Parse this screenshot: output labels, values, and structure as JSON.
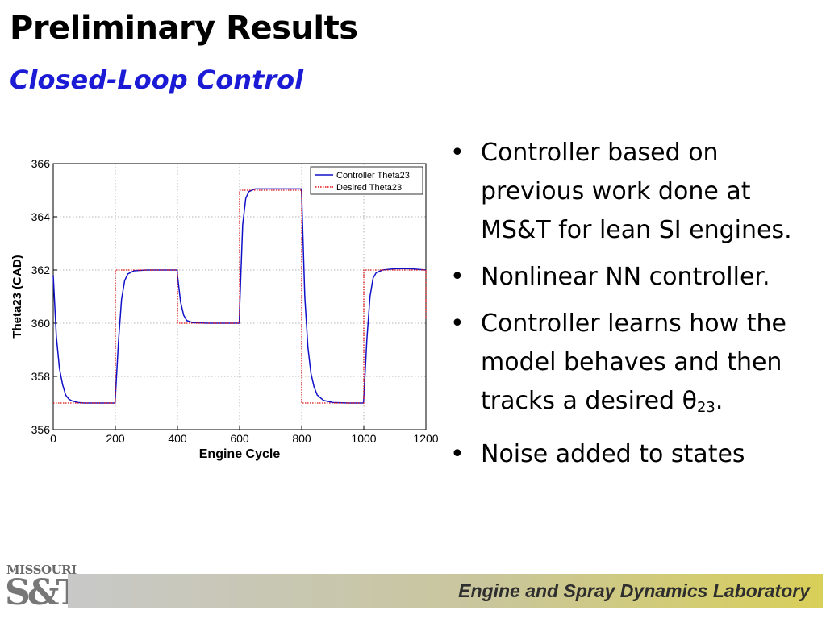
{
  "slide": {
    "title": "Preliminary Results",
    "subtitle": "Closed-Loop Control"
  },
  "bullets": [
    "Controller based on previous work done at MS&T for lean SI engines.",
    "Nonlinear NN controller.",
    "Controller learns how the model behaves and then tracks a desired",
    "Noise added to states"
  ],
  "bullet3_symbol": "θ",
  "bullet3_subscript": "23",
  "bullet3_end": ".",
  "footer": {
    "lab_name": "Engine and Spray Dynamics Laboratory",
    "logo_top": "MISSOURI",
    "logo_main": "S&T"
  },
  "colors": {
    "title": "#000000",
    "subtitle": "#1b1bd6",
    "controller_line": "#1010c8",
    "desired_line": "#e01010"
  },
  "chart_data": {
    "type": "line",
    "title": "",
    "xlabel": "Engine Cycle",
    "ylabel": "Theta23 (CAD)",
    "xlim": [
      0,
      1200
    ],
    "ylim": [
      356,
      366
    ],
    "xticks": [
      0,
      200,
      400,
      600,
      800,
      1000,
      1200
    ],
    "yticks": [
      356,
      358,
      360,
      362,
      364,
      366
    ],
    "grid": true,
    "legend_position": "top-right",
    "series": [
      {
        "name": "Controller Theta23",
        "style": "solid",
        "color": "#1010c8",
        "x": [
          0,
          10,
          20,
          30,
          40,
          50,
          60,
          80,
          100,
          150,
          199,
          200,
          210,
          220,
          230,
          240,
          260,
          300,
          350,
          399,
          400,
          410,
          420,
          430,
          450,
          500,
          550,
          599,
          600,
          610,
          620,
          630,
          650,
          700,
          750,
          799,
          800,
          810,
          820,
          830,
          840,
          850,
          870,
          900,
          950,
          999,
          1000,
          1010,
          1020,
          1030,
          1040,
          1060,
          1100,
          1150,
          1200
        ],
        "y": [
          361.8,
          359.5,
          358.3,
          357.7,
          357.3,
          357.15,
          357.08,
          357.02,
          357.0,
          357.0,
          357.0,
          357.2,
          359.3,
          360.9,
          361.6,
          361.85,
          361.97,
          362.0,
          362.0,
          362.0,
          361.8,
          360.8,
          360.3,
          360.1,
          360.02,
          360.0,
          360.0,
          360.0,
          360.5,
          363.7,
          364.7,
          364.95,
          365.05,
          365.05,
          365.05,
          365.05,
          364.8,
          361.0,
          359.1,
          358.1,
          357.6,
          357.3,
          357.1,
          357.02,
          357.0,
          357.0,
          357.2,
          359.4,
          361.0,
          361.7,
          361.9,
          362.0,
          362.05,
          362.05,
          362.0
        ]
      },
      {
        "name": "Desired Theta23",
        "style": "dotted",
        "color": "#e01010",
        "x": [
          0,
          200,
          200,
          400,
          400,
          600,
          600,
          800,
          800,
          1000,
          1000,
          1200,
          1200
        ],
        "y": [
          357,
          357,
          362,
          362,
          360,
          360,
          365,
          365,
          357,
          357,
          362,
          362,
          360.2
        ]
      }
    ]
  }
}
